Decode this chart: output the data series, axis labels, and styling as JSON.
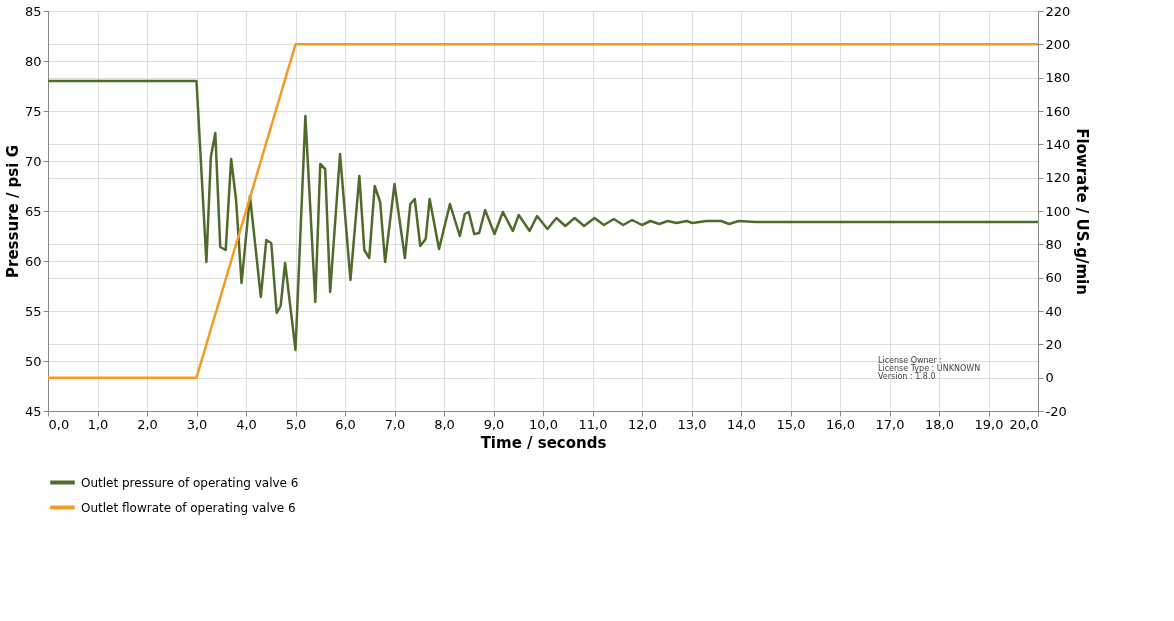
{
  "chart_data": {
    "type": "line",
    "xlabel": "Time / seconds",
    "ylabel": "Pressure / psi G",
    "y2label": "Flowrate / US.g/min",
    "xlim": [
      0,
      20
    ],
    "ylim": [
      45,
      85
    ],
    "y2lim": [
      -20,
      220
    ],
    "xticks": [
      {
        "value": 0,
        "label": "0,0"
      },
      {
        "value": 1,
        "label": "1,0"
      },
      {
        "value": 2,
        "label": "2,0"
      },
      {
        "value": 3,
        "label": "3,0"
      },
      {
        "value": 4,
        "label": "4,0"
      },
      {
        "value": 5,
        "label": "5,0"
      },
      {
        "value": 6,
        "label": "6,0"
      },
      {
        "value": 7,
        "label": "7,0"
      },
      {
        "value": 8,
        "label": "8,0"
      },
      {
        "value": 9,
        "label": "9,0"
      },
      {
        "value": 10,
        "label": "10,0"
      },
      {
        "value": 11,
        "label": "11,0"
      },
      {
        "value": 12,
        "label": "12,0"
      },
      {
        "value": 13,
        "label": "13,0"
      },
      {
        "value": 14,
        "label": "14,0"
      },
      {
        "value": 15,
        "label": "15,0"
      },
      {
        "value": 16,
        "label": "16,0"
      },
      {
        "value": 17,
        "label": "17,0"
      },
      {
        "value": 18,
        "label": "18,0"
      },
      {
        "value": 19,
        "label": "19,0"
      },
      {
        "value": 20,
        "label": "20,0"
      }
    ],
    "yticks": [
      45,
      50,
      55,
      60,
      65,
      70,
      75,
      80,
      85
    ],
    "y2ticks": [
      -20,
      0,
      20,
      40,
      60,
      80,
      100,
      120,
      140,
      160,
      180,
      200,
      220
    ],
    "grid": true,
    "legend": "bottom",
    "line_style": "solid",
    "marker": "none",
    "annotations": [
      "License Owner :",
      "License Type : UNKNOWN",
      "Version : 1.8.0"
    ],
    "series": [
      {
        "name": "Outlet pressure of operating valve 6",
        "color": "#4f6b2b",
        "axis": "y",
        "x": [
          0,
          3.0,
          3.2,
          3.29,
          3.38,
          3.48,
          3.59,
          3.7,
          3.8,
          3.91,
          4.08,
          4.3,
          4.41,
          4.51,
          4.62,
          4.7,
          4.79,
          5.0,
          5.2,
          5.4,
          5.5,
          5.6,
          5.7,
          5.9,
          6.11,
          6.29,
          6.39,
          6.49,
          6.6,
          6.71,
          6.81,
          7.0,
          7.21,
          7.32,
          7.41,
          7.52,
          7.63,
          7.71,
          7.9,
          8.12,
          8.32,
          8.42,
          8.5,
          8.61,
          8.71,
          8.83,
          9.02,
          9.19,
          9.39,
          9.51,
          9.73,
          9.88,
          10.09,
          10.27,
          10.45,
          10.64,
          10.83,
          11.04,
          11.23,
          11.43,
          11.62,
          11.8,
          12.0,
          12.17,
          12.35,
          12.52,
          12.7,
          12.9,
          13.02,
          13.3,
          13.6,
          13.76,
          13.95,
          14.3,
          15,
          16,
          17,
          18,
          19,
          20
        ],
        "values": [
          78,
          78,
          59.9,
          70.4,
          72.8,
          61.4,
          61.1,
          70.2,
          66.1,
          57.8,
          66.5,
          56.4,
          62.1,
          61.8,
          54.8,
          55.5,
          59.8,
          51.1,
          74.5,
          55.9,
          69.7,
          69.2,
          56.9,
          70.7,
          58.1,
          68.5,
          61.1,
          60.3,
          67.5,
          65.9,
          59.9,
          67.7,
          60.3,
          65.7,
          66.2,
          61.5,
          62.2,
          66.2,
          61.2,
          65.7,
          62.5,
          64.7,
          64.9,
          62.7,
          62.8,
          65.1,
          62.7,
          64.9,
          63.0,
          64.6,
          63.0,
          64.5,
          63.2,
          64.3,
          63.5,
          64.3,
          63.5,
          64.3,
          63.6,
          64.2,
          63.6,
          64.1,
          63.6,
          64.0,
          63.7,
          64.0,
          63.8,
          64.0,
          63.8,
          64.0,
          64.0,
          63.7,
          64.0,
          63.9,
          63.9,
          63.9,
          63.9,
          63.9,
          63.9,
          63.9
        ]
      },
      {
        "name": "Outlet flowrate of operating valve 6",
        "color": "#f59a23",
        "axis": "y2",
        "x": [
          0,
          3.0,
          5.0,
          20
        ],
        "values": [
          0,
          0,
          200,
          200
        ]
      }
    ]
  }
}
